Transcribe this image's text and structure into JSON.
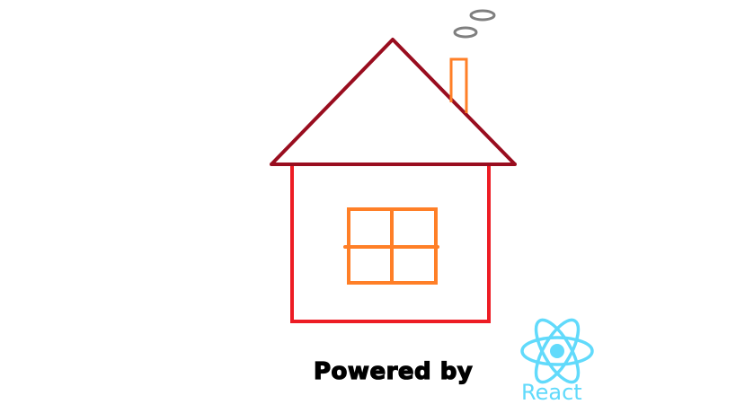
{
  "caption": {
    "powered_by": "Powered by"
  },
  "logo": {
    "name": "React",
    "icon": "react-atom-icon",
    "color": "#61dafb"
  },
  "drawing": {
    "subject": "house",
    "colors": {
      "roof": "#990d1f",
      "walls": "#ed1c24",
      "window": "#ff7f27",
      "chimney": "#ff7f27",
      "smoke": "#7f7f7f"
    }
  }
}
